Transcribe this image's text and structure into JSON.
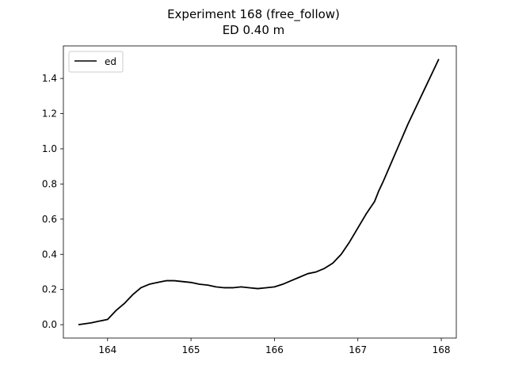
{
  "chart_data": {
    "type": "line",
    "title": "Experiment 168 (free_follow)",
    "subtitle": "ED 0.40 m",
    "xlabel": "",
    "ylabel": "",
    "xlim": [
      163.47,
      168.18
    ],
    "ylim": [
      -0.076,
      1.585
    ],
    "x_ticks": [
      164,
      165,
      166,
      167,
      168
    ],
    "y_ticks": [
      0.0,
      0.2,
      0.4,
      0.6,
      0.8,
      1.0,
      1.2,
      1.4
    ],
    "x_tick_labels": [
      "164",
      "165",
      "166",
      "167",
      "168"
    ],
    "y_tick_labels": [
      "0.0",
      "0.2",
      "0.4",
      "0.6",
      "0.8",
      "1.0",
      "1.2",
      "1.4"
    ],
    "grid": false,
    "legend_position": "top-left",
    "series": [
      {
        "name": "ed",
        "color": "#000000",
        "x": [
          163.65,
          163.8,
          163.9,
          164.0,
          164.1,
          164.2,
          164.3,
          164.4,
          164.5,
          164.6,
          164.7,
          164.8,
          164.9,
          165.0,
          165.1,
          165.2,
          165.3,
          165.4,
          165.5,
          165.6,
          165.7,
          165.8,
          165.9,
          166.0,
          166.1,
          166.2,
          166.3,
          166.4,
          166.5,
          166.6,
          166.7,
          166.8,
          166.9,
          167.0,
          167.1,
          167.2,
          167.25,
          167.3,
          167.4,
          167.5,
          167.6,
          167.7,
          167.8,
          167.9,
          167.97
        ],
        "y": [
          0.0,
          0.01,
          0.02,
          0.03,
          0.08,
          0.12,
          0.17,
          0.21,
          0.23,
          0.24,
          0.25,
          0.25,
          0.245,
          0.24,
          0.23,
          0.225,
          0.215,
          0.21,
          0.21,
          0.215,
          0.21,
          0.205,
          0.21,
          0.215,
          0.23,
          0.25,
          0.27,
          0.29,
          0.3,
          0.32,
          0.35,
          0.4,
          0.47,
          0.55,
          0.63,
          0.7,
          0.76,
          0.81,
          0.92,
          1.03,
          1.14,
          1.24,
          1.34,
          1.44,
          1.51
        ]
      }
    ]
  }
}
